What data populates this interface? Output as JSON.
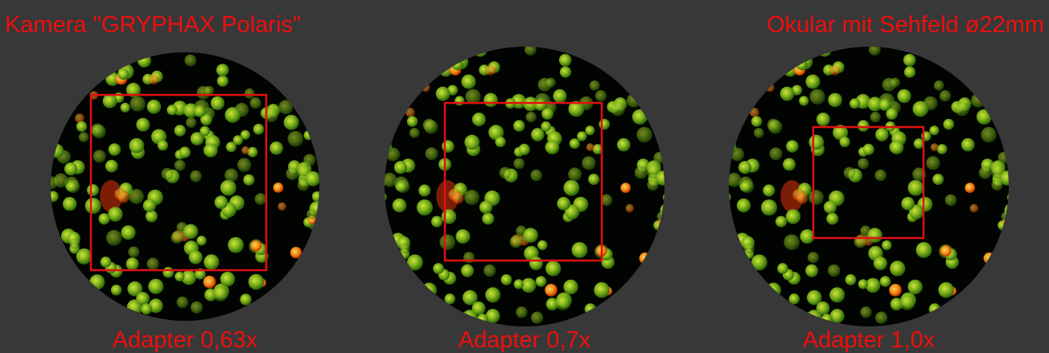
{
  "header": {
    "left_title": "Kamera \"GRYPHAX Polaris\"",
    "right_title": "Okular mit Sehfeld ø22mm"
  },
  "panels": [
    {
      "label": "Adapter 0,63x"
    },
    {
      "label": "Adapter 0,7x"
    },
    {
      "label": "Adapter 1,0x"
    }
  ]
}
